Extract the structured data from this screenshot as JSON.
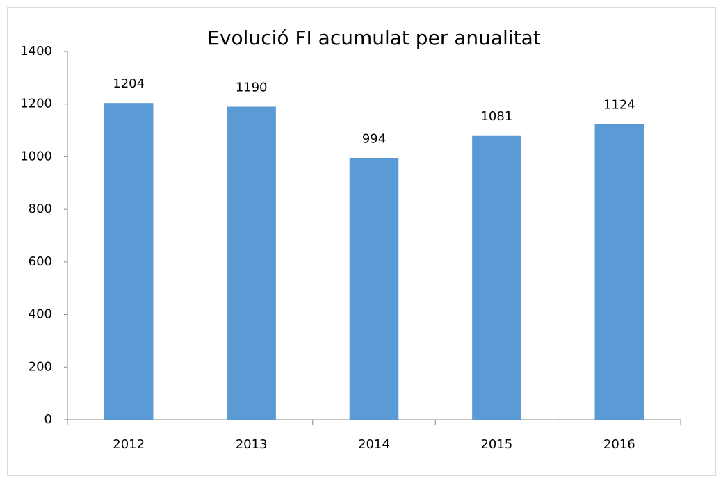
{
  "chart_data": {
    "type": "bar",
    "title": "Evolució FI acumulat per anualitat",
    "categories": [
      "2012",
      "2013",
      "2014",
      "2015",
      "2016"
    ],
    "values": [
      1204,
      1190,
      994,
      1081,
      1124
    ],
    "color": "#5b9bd5",
    "ylim": [
      0,
      1400
    ],
    "yticks": [
      0,
      200,
      400,
      600,
      800,
      1000,
      1200,
      1400
    ],
    "grid": false
  }
}
